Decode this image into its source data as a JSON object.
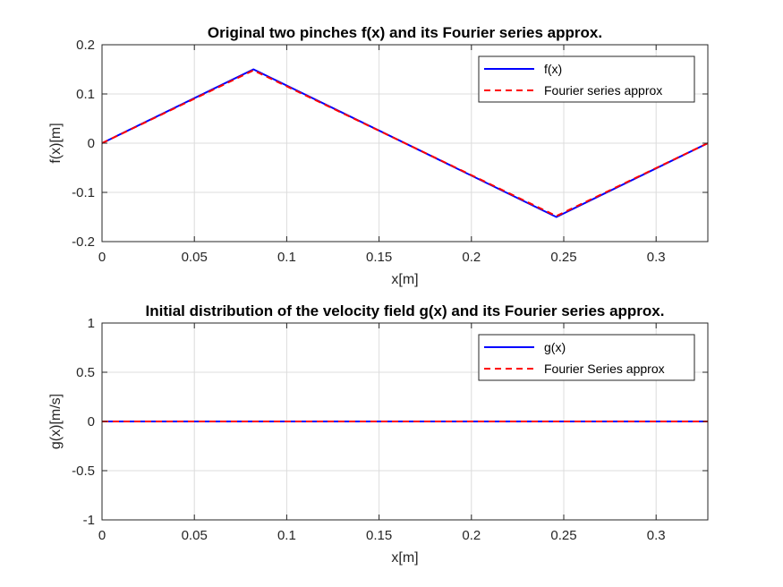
{
  "chart_data": [
    {
      "type": "line",
      "title": "Original two pinches f(x) and its Fourier series approx.",
      "xlabel": "x[m]",
      "ylabel": "f(x)[m]",
      "xlim": [
        0,
        0.328
      ],
      "ylim": [
        -0.2,
        0.2
      ],
      "xticks": [
        0,
        0.05,
        0.1,
        0.15,
        0.2,
        0.25,
        0.3
      ],
      "xtick_labels": [
        "0",
        "0.05",
        "0.1",
        "0.15",
        "0.2",
        "0.25",
        "0.3"
      ],
      "yticks": [
        -0.2,
        -0.1,
        0,
        0.1,
        0.2
      ],
      "ytick_labels": [
        "-0.2",
        "-0.1",
        "0",
        "0.1",
        "0.2"
      ],
      "grid": true,
      "legend_position": "top-right",
      "series": [
        {
          "name": "f(x)",
          "color": "#0000ff",
          "style": "solid",
          "x": [
            0,
            0.082,
            0.246,
            0.328
          ],
          "y": [
            0,
            0.15,
            -0.15,
            0
          ]
        },
        {
          "name": "Fourier series approx",
          "color": "#ff0000",
          "style": "dashed",
          "x": [
            0,
            0.082,
            0.246,
            0.328
          ],
          "y": [
            0,
            0.148,
            -0.148,
            0
          ]
        }
      ]
    },
    {
      "type": "line",
      "title": "Initial distribution of the velocity field g(x) and its Fourier series approx.",
      "xlabel": "x[m]",
      "ylabel": "g(x)[m/s]",
      "xlim": [
        0,
        0.328
      ],
      "ylim": [
        -1,
        1
      ],
      "xticks": [
        0,
        0.05,
        0.1,
        0.15,
        0.2,
        0.25,
        0.3
      ],
      "xtick_labels": [
        "0",
        "0.05",
        "0.1",
        "0.15",
        "0.2",
        "0.25",
        "0.3"
      ],
      "yticks": [
        -1,
        -0.5,
        0,
        0.5,
        1
      ],
      "ytick_labels": [
        "-1",
        "-0.5",
        "0",
        "0.5",
        "1"
      ],
      "grid": true,
      "legend_position": "top-right",
      "series": [
        {
          "name": "g(x)",
          "color": "#0000ff",
          "style": "solid",
          "x": [
            0,
            0.328
          ],
          "y": [
            0,
            0
          ]
        },
        {
          "name": "Fourier Series approx",
          "color": "#ff0000",
          "style": "dashed",
          "x": [
            0,
            0.328
          ],
          "y": [
            0,
            0
          ]
        }
      ]
    }
  ]
}
